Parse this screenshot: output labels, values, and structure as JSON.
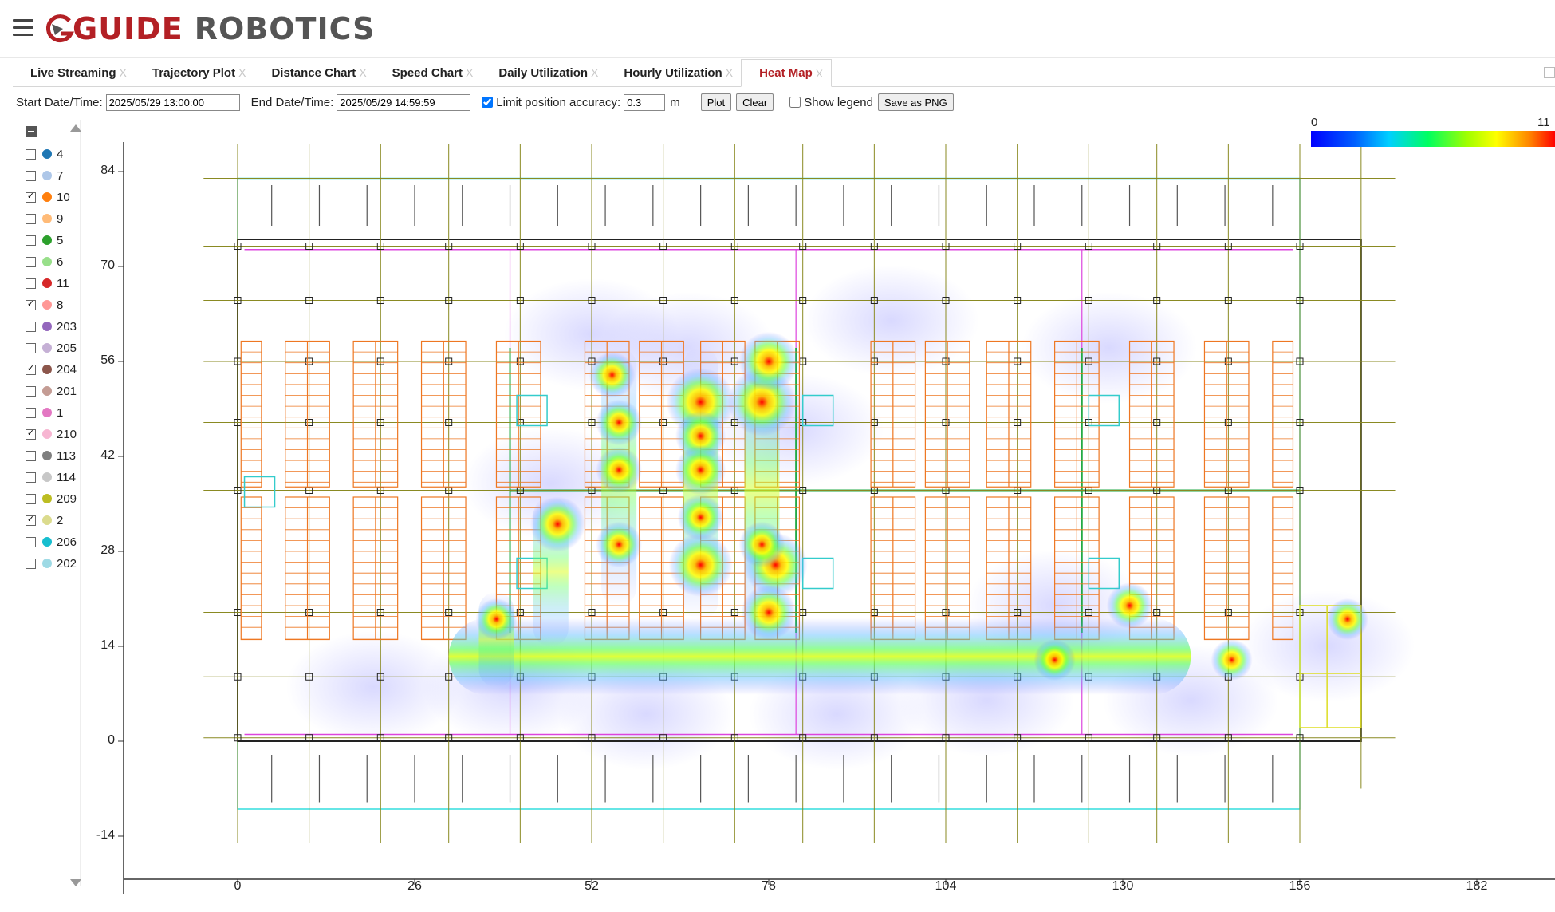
{
  "brand": {
    "name_part1": "GUIDE",
    "name_part2": "ROBOTICS"
  },
  "tabs": [
    {
      "label": "Live Streaming",
      "close": "X",
      "active": false
    },
    {
      "label": "Trajectory Plot",
      "close": "X",
      "active": false
    },
    {
      "label": "Distance Chart",
      "close": "X",
      "active": false
    },
    {
      "label": "Speed Chart",
      "close": "X",
      "active": false
    },
    {
      "label": "Daily Utilization",
      "close": "X",
      "active": false
    },
    {
      "label": "Hourly Utilization",
      "close": "X",
      "active": false
    },
    {
      "label": "Heat Map",
      "close": "X",
      "active": true
    }
  ],
  "controls": {
    "start_label": "Start Date/Time:",
    "start_value": "2025/05/29 13:00:00",
    "end_label": "End Date/Time:",
    "end_value": "2025/05/29 14:59:59",
    "limit_label": "Limit position accuracy:",
    "limit_checked": true,
    "limit_value": "0.3",
    "limit_unit": "m",
    "plot_label": "Plot",
    "clear_label": "Clear",
    "show_legend_label": "Show legend",
    "show_legend_checked": false,
    "save_label": "Save as PNG"
  },
  "robots": [
    {
      "id": "4",
      "color": "#1f77b4",
      "checked": false
    },
    {
      "id": "7",
      "color": "#aec7e8",
      "checked": false
    },
    {
      "id": "10",
      "color": "#ff7f0e",
      "checked": true
    },
    {
      "id": "9",
      "color": "#ffbb78",
      "checked": false
    },
    {
      "id": "5",
      "color": "#2ca02c",
      "checked": false
    },
    {
      "id": "6",
      "color": "#98df8a",
      "checked": false
    },
    {
      "id": "11",
      "color": "#d62728",
      "checked": false
    },
    {
      "id": "8",
      "color": "#ff9896",
      "checked": true
    },
    {
      "id": "203",
      "color": "#9467bd",
      "checked": false
    },
    {
      "id": "205",
      "color": "#c5b0d5",
      "checked": false
    },
    {
      "id": "204",
      "color": "#8c564b",
      "checked": true
    },
    {
      "id": "201",
      "color": "#c49c94",
      "checked": false
    },
    {
      "id": "1",
      "color": "#e377c2",
      "checked": false
    },
    {
      "id": "210",
      "color": "#f7b6d2",
      "checked": true
    },
    {
      "id": "113",
      "color": "#7f7f7f",
      "checked": false
    },
    {
      "id": "114",
      "color": "#c7c7c7",
      "checked": false
    },
    {
      "id": "209",
      "color": "#bcbd22",
      "checked": false
    },
    {
      "id": "2",
      "color": "#dbdb8d",
      "checked": true
    },
    {
      "id": "206",
      "color": "#17becf",
      "checked": false
    },
    {
      "id": "202",
      "color": "#9edae5",
      "checked": false
    }
  ],
  "chart_data": {
    "type": "heatmap",
    "colorbar": {
      "min": 0,
      "max": 11,
      "label_min": "0",
      "label_max": "11"
    },
    "x_ticks": [
      0,
      26,
      52,
      78,
      104,
      130,
      156,
      182
    ],
    "y_ticks": [
      84,
      70,
      56,
      42,
      28,
      14,
      0,
      -14
    ],
    "xlim": [
      -17,
      192
    ],
    "ylim": [
      -20,
      88
    ],
    "hotspots": [
      {
        "x": 68,
        "y": 50,
        "intensity": 11
      },
      {
        "x": 68,
        "y": 26,
        "intensity": 10
      },
      {
        "x": 77,
        "y": 50,
        "intensity": 11
      },
      {
        "x": 79,
        "y": 26,
        "intensity": 10
      },
      {
        "x": 78,
        "y": 56,
        "intensity": 9
      },
      {
        "x": 78,
        "y": 19,
        "intensity": 8
      },
      {
        "x": 47,
        "y": 32,
        "intensity": 8
      },
      {
        "x": 68,
        "y": 45,
        "intensity": 7
      },
      {
        "x": 68,
        "y": 40,
        "intensity": 7
      },
      {
        "x": 55,
        "y": 54,
        "intensity": 6
      },
      {
        "x": 56,
        "y": 47,
        "intensity": 6
      },
      {
        "x": 56,
        "y": 40,
        "intensity": 6
      },
      {
        "x": 56,
        "y": 29,
        "intensity": 6
      },
      {
        "x": 68,
        "y": 33,
        "intensity": 6
      },
      {
        "x": 77,
        "y": 29,
        "intensity": 6
      },
      {
        "x": 131,
        "y": 20,
        "intensity": 6
      },
      {
        "x": 146,
        "y": 12,
        "intensity": 5
      },
      {
        "x": 163,
        "y": 18,
        "intensity": 5
      },
      {
        "x": 38,
        "y": 18,
        "intensity": 5
      },
      {
        "x": 120,
        "y": 12,
        "intensity": 5
      }
    ],
    "corridor": {
      "y": 12.5,
      "x_from": 31,
      "x_to": 140,
      "intensity": 6
    }
  }
}
